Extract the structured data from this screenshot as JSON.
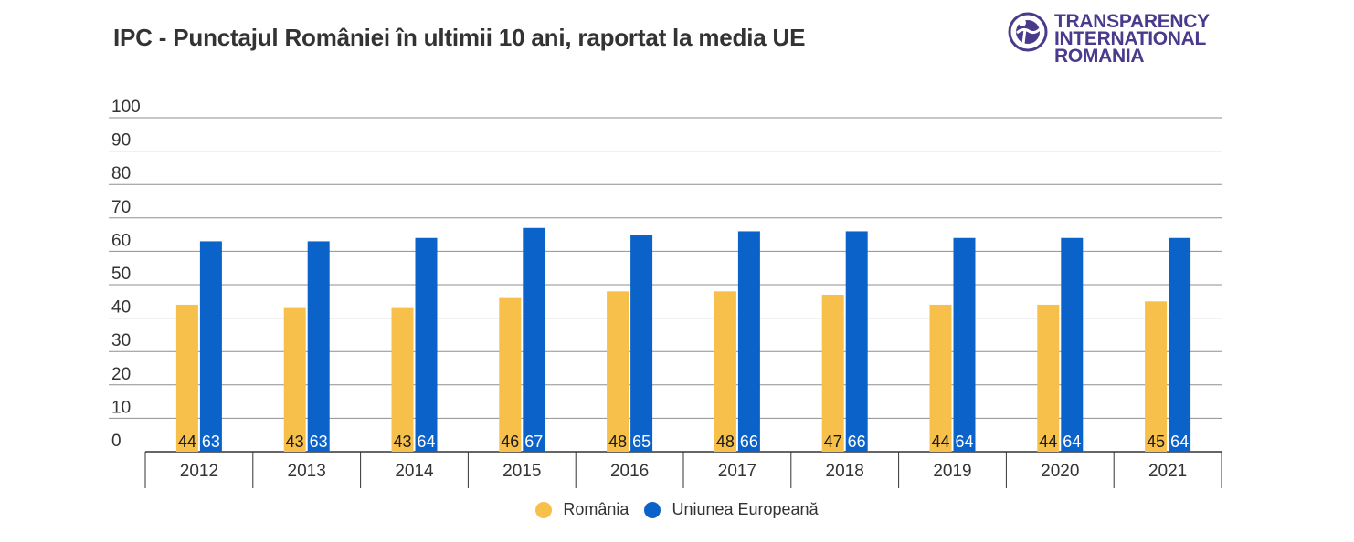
{
  "title": "IPC - Punctajul României în ultimii 10 ani, raportat la media UE",
  "logo": {
    "lines": [
      "TRANSPARENCY",
      "INTERNATIONAL",
      "ROMANIA"
    ],
    "color": "#4a3a8c"
  },
  "colors": {
    "romania": "#f6c04a",
    "eu": "#0b63c9",
    "grid": "#8f8f8f",
    "axis_text": "#333333"
  },
  "chart_data": {
    "type": "bar",
    "title": "IPC - Punctajul României în ultimii 10 ani, raportat la media UE",
    "categories": [
      "2012",
      "2013",
      "2014",
      "2015",
      "2016",
      "2017",
      "2018",
      "2019",
      "2020",
      "2021"
    ],
    "series": [
      {
        "name": "România",
        "color": "#f6c04a",
        "values": [
          44,
          43,
          43,
          46,
          48,
          48,
          47,
          44,
          44,
          45
        ]
      },
      {
        "name": "Uniunea Europeană",
        "color": "#0b63c9",
        "values": [
          63,
          63,
          64,
          67,
          65,
          66,
          66,
          64,
          64,
          64
        ]
      }
    ],
    "yticks": [
      0,
      10,
      20,
      30,
      40,
      50,
      60,
      70,
      80,
      90,
      100
    ],
    "ylim": [
      0,
      100
    ],
    "xlabel": "",
    "ylabel": "",
    "grid": true,
    "legend_position": "bottom-center",
    "data_labels_position": "bar-base"
  }
}
